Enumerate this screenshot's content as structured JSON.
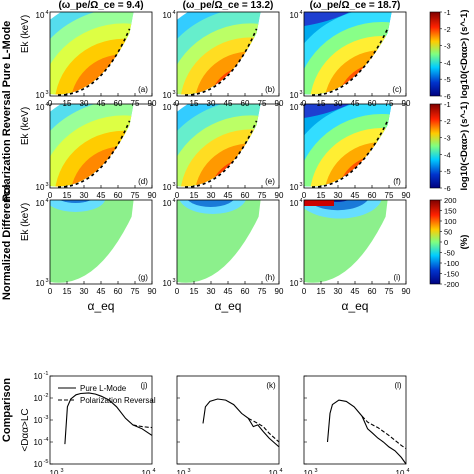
{
  "column_titles": [
    "(ω_pe/Ω_ce = 9.4)",
    "(ω_pe/Ω_ce = 13.2)",
    "(ω_pe/Ω_ce = 18.7)"
  ],
  "row_labels": [
    "Pure L-Mode",
    "Polarization Reversal",
    "Normalized Difference",
    "Comparison"
  ],
  "panel_letters": [
    "(a)",
    "(b)",
    "(c)",
    "(d)",
    "(e)",
    "(f)",
    "(g)",
    "(h)",
    "(i)",
    "(j)",
    "(k)",
    "(l)"
  ],
  "colorbars": [
    {
      "label": "log10(<Dαα>) (s^-1)",
      "ticks": [
        "-1",
        "-2",
        "-3",
        "-4",
        "-5",
        "-6"
      ],
      "colors": [
        "#7f0000",
        "#ff3300",
        "#ffcc00",
        "#7fff7f",
        "#00ccff",
        "#0033cc",
        "#00007f"
      ]
    },
    {
      "label": "log10(<Dαα>) (s^-1)",
      "ticks": [
        "-1",
        "-2",
        "-3",
        "-4",
        "-5",
        "-6"
      ],
      "colors": [
        "#7f0000",
        "#ff3300",
        "#ffcc00",
        "#7fff7f",
        "#00ccff",
        "#0033cc",
        "#00007f"
      ]
    },
    {
      "label": "(%)",
      "ticks": [
        "200",
        "150",
        "100",
        "50",
        "0",
        "-50",
        "-100",
        "-150",
        "-200"
      ],
      "colors": [
        "#7f0000",
        "#ff3300",
        "#ffcc00",
        "#7fff7f",
        "#00ccff",
        "#0033cc",
        "#00007f"
      ]
    }
  ],
  "chart_data": [
    {
      "panel": "(a)",
      "type": "heatmap",
      "title": "(ω_pe/Ω_ce = 9.4)",
      "ylabel": "Ek (keV)",
      "xlabel": "",
      "xlim": [
        0,
        90
      ],
      "ylim": [
        1000,
        10000
      ],
      "y_scale": "log",
      "value": "log10(<Dαα>) (s^-1)"
    },
    {
      "panel": "(b)",
      "type": "heatmap",
      "title": "(ω_pe/Ω_ce = 13.2)",
      "xlim": [
        0,
        90
      ],
      "ylim": [
        1000,
        10000
      ],
      "y_scale": "log"
    },
    {
      "panel": "(c)",
      "type": "heatmap",
      "title": "(ω_pe/Ω_ce = 18.7)",
      "xlim": [
        0,
        90
      ],
      "ylim": [
        1000,
        10000
      ],
      "y_scale": "log"
    },
    {
      "panel": "(d)",
      "type": "heatmap",
      "ylabel": "Ek (keV)",
      "xlim": [
        0,
        90
      ],
      "ylim": [
        1000,
        10000
      ],
      "y_scale": "log"
    },
    {
      "panel": "(e)",
      "type": "heatmap",
      "xlim": [
        0,
        90
      ],
      "ylim": [
        1000,
        10000
      ],
      "y_scale": "log"
    },
    {
      "panel": "(f)",
      "type": "heatmap",
      "xlim": [
        0,
        90
      ],
      "ylim": [
        1000,
        10000
      ],
      "y_scale": "log"
    },
    {
      "panel": "(g)",
      "type": "heatmap",
      "ylabel": "Ek (keV)",
      "xlabel": "α_eq",
      "xlim": [
        0,
        90
      ],
      "ylim": [
        1000,
        10000
      ],
      "y_scale": "log",
      "value": "%"
    },
    {
      "panel": "(h)",
      "type": "heatmap",
      "xlabel": "α_eq",
      "xlim": [
        0,
        90
      ],
      "ylim": [
        1000,
        10000
      ],
      "y_scale": "log"
    },
    {
      "panel": "(i)",
      "type": "heatmap",
      "xlabel": "α_eq",
      "xlim": [
        0,
        90
      ],
      "ylim": [
        1000,
        10000
      ],
      "y_scale": "log"
    },
    {
      "panel": "(j)",
      "type": "line",
      "ylabel": "<Dαα>LC",
      "y_scale": "log",
      "x_scale": "log",
      "ylim": [
        1e-05,
        0.1
      ],
      "xlim": [
        1000,
        10000
      ],
      "series": [
        {
          "name": "Pure L-Mode",
          "x": [
            1400,
            1480,
            1600,
            1800,
            2000,
            2400,
            2800,
            3200,
            3800,
            4500,
            5500,
            6500,
            8000,
            10000
          ],
          "y": [
            8e-05,
            0.004,
            0.009,
            0.014,
            0.016,
            0.017,
            0.015,
            0.012,
            0.008,
            0.004,
            0.0012,
            0.0006,
            0.0004,
            0.0002
          ]
        },
        {
          "name": "Polarization Reversal",
          "x": [
            6500,
            8000,
            10000
          ],
          "y": [
            0.0006,
            0.0005,
            0.00045
          ]
        }
      ]
    },
    {
      "panel": "(k)",
      "type": "line",
      "y_scale": "log",
      "x_scale": "log",
      "ylim": [
        1e-05,
        0.1
      ],
      "xlim": [
        1000,
        10000
      ],
      "series": [
        {
          "name": "Pure L-Mode",
          "x": [
            1800,
            1900,
            2100,
            2500,
            3000,
            3600,
            4300,
            5000,
            5600,
            6200,
            7000,
            8000,
            10000
          ],
          "y": [
            0.0007,
            0.004,
            0.007,
            0.009,
            0.008,
            0.005,
            0.002,
            0.0012,
            0.0005,
            0.0006,
            0.0003,
            0.00015,
            6e-05
          ]
        },
        {
          "name": "Polarization Reversal",
          "x": [
            5000,
            5600,
            6200,
            7000,
            8000,
            10000
          ],
          "y": [
            0.0012,
            0.0009,
            0.0007,
            0.0005,
            0.00025,
            0.0001
          ]
        }
      ]
    },
    {
      "panel": "(l)",
      "type": "line",
      "y_scale": "log",
      "x_scale": "log",
      "ylim": [
        1e-05,
        0.1
      ],
      "xlim": [
        1000,
        10000
      ],
      "series": [
        {
          "name": "Pure L-Mode",
          "x": [
            1700,
            1800,
            1900,
            2200,
            2600,
            3100,
            3700,
            4200,
            4700,
            5300,
            6000,
            6800,
            7800,
            9000,
            10000
          ],
          "y": [
            0.0001,
            0.002,
            0.005,
            0.008,
            0.007,
            0.004,
            0.0015,
            0.0004,
            0.00025,
            0.00015,
            0.0001,
            6e-05,
            4e-05,
            2e-05,
            1e-05
          ]
        },
        {
          "name": "Polarization Reversal",
          "x": [
            3700,
            4200,
            4700,
            5300,
            6000,
            6800,
            7800,
            9000,
            10000
          ],
          "y": [
            0.0015,
            0.0008,
            0.0006,
            0.00045,
            0.0003,
            0.0002,
            0.00012,
            7e-05,
            5e-05
          ]
        }
      ]
    }
  ],
  "axis_text": {
    "x_ticks": [
      "0",
      "15",
      "30",
      "45",
      "60",
      "75",
      "90"
    ],
    "y_ticks_exp": [
      "10^4",
      "10^3"
    ],
    "comp_y_ticks": [
      "10^-1",
      "10^-2",
      "10^-3",
      "10^-4",
      "10^-5"
    ],
    "comp_x_ticks": [
      "10^3",
      "10^4"
    ],
    "ek": "Ek (keV)",
    "alpha": "α_eq",
    "comp_ylabel": "<Dαα>LC",
    "legend": [
      "Pure L-Mode",
      "Polarization Reversal"
    ]
  },
  "row_label_color": "#000000"
}
